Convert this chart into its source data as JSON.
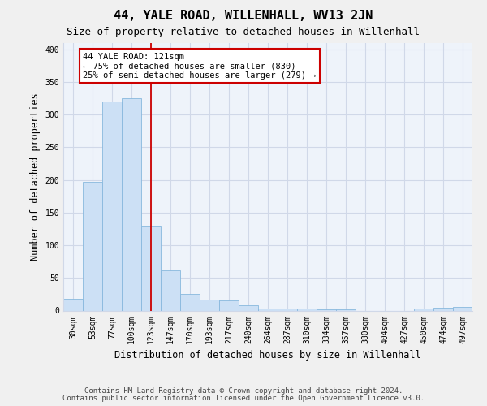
{
  "title": "44, YALE ROAD, WILLENHALL, WV13 2JN",
  "subtitle": "Size of property relative to detached houses in Willenhall",
  "xlabel": "Distribution of detached houses by size in Willenhall",
  "ylabel": "Number of detached properties",
  "bar_labels": [
    "30sqm",
    "53sqm",
    "77sqm",
    "100sqm",
    "123sqm",
    "147sqm",
    "170sqm",
    "193sqm",
    "217sqm",
    "240sqm",
    "264sqm",
    "287sqm",
    "310sqm",
    "334sqm",
    "357sqm",
    "380sqm",
    "404sqm",
    "427sqm",
    "450sqm",
    "474sqm",
    "497sqm"
  ],
  "bar_values": [
    18,
    197,
    320,
    325,
    130,
    62,
    25,
    17,
    15,
    8,
    3,
    3,
    3,
    2,
    2,
    0,
    0,
    0,
    3,
    4,
    5
  ],
  "bar_color": "#cce0f5",
  "bar_edge_color": "#88b8dd",
  "vline_x": 4,
  "vline_color": "#cc0000",
  "annotation_text": "44 YALE ROAD: 121sqm\n← 75% of detached houses are smaller (830)\n25% of semi-detached houses are larger (279) →",
  "annotation_box_color": "white",
  "annotation_box_edge": "#cc0000",
  "ylim": [
    0,
    410
  ],
  "yticks": [
    0,
    50,
    100,
    150,
    200,
    250,
    300,
    350,
    400
  ],
  "footer_line1": "Contains HM Land Registry data © Crown copyright and database right 2024.",
  "footer_line2": "Contains public sector information licensed under the Open Government Licence v3.0.",
  "bg_color": "#f0f0f0",
  "plot_bg_color": "#eef3fa",
  "grid_color": "#d0d8e8",
  "title_fontsize": 11,
  "subtitle_fontsize": 9,
  "axis_label_fontsize": 8.5,
  "tick_fontsize": 7,
  "footer_fontsize": 6.5,
  "annot_fontsize": 7.5
}
